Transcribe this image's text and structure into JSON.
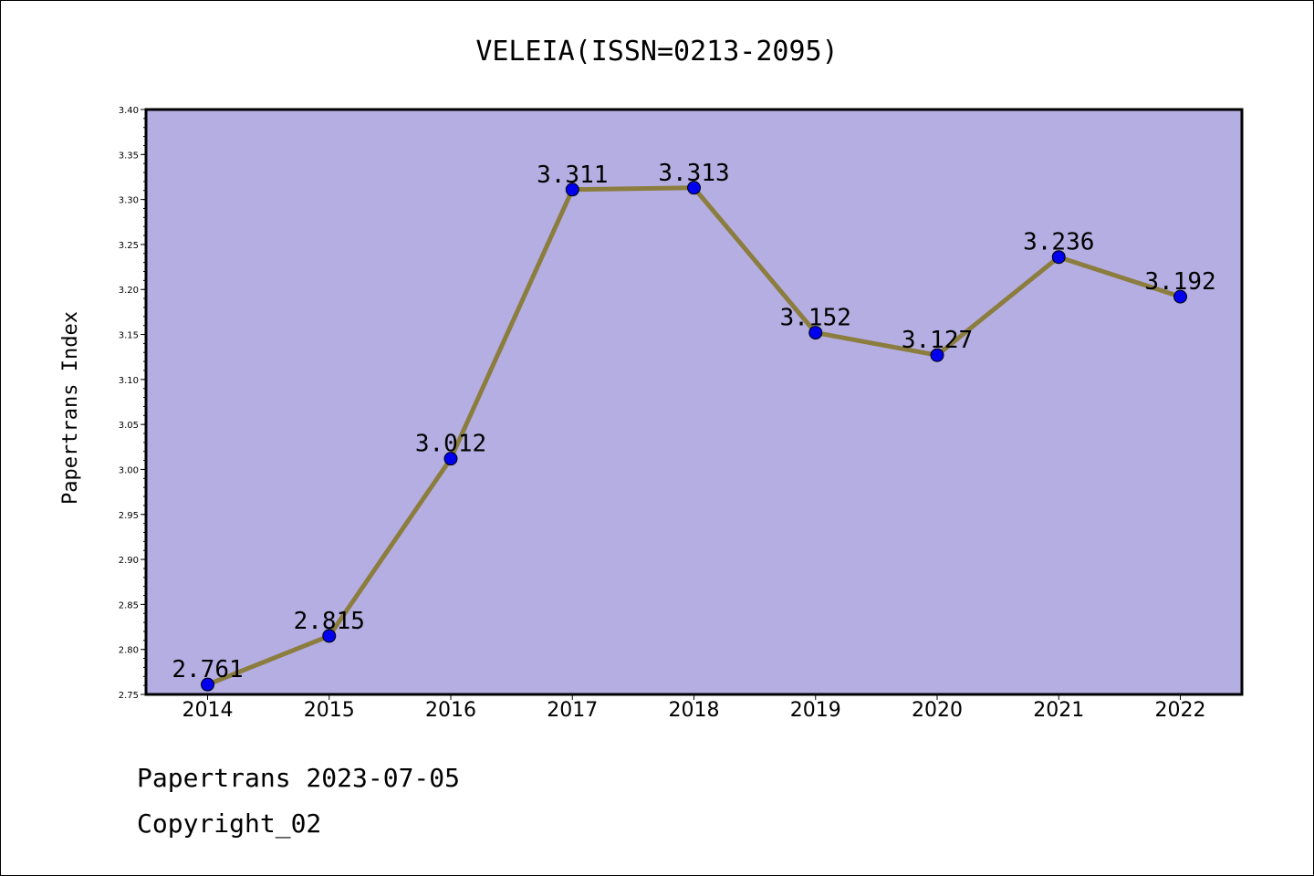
{
  "chart_data": {
    "type": "line",
    "title": "VELEIA(ISSN=0213-2095)",
    "xlabel": "",
    "ylabel": "Papertrans Index",
    "x": [
      "2014",
      "2015",
      "2016",
      "2017",
      "2018",
      "2019",
      "2020",
      "2021",
      "2022"
    ],
    "series": [
      {
        "values": [
          2.761,
          2.815,
          3.012,
          3.311,
          3.313,
          3.152,
          3.127,
          3.236,
          3.192
        ]
      }
    ],
    "data_labels": [
      "2.761",
      "2.815",
      "3.012",
      "3.311",
      "3.313",
      "3.152",
      "3.127",
      "3.236",
      "3.192"
    ],
    "ylim": [
      2.75,
      3.4
    ],
    "yticks": [
      "2.75",
      "2.80",
      "2.85",
      "2.90",
      "2.95",
      "3.00",
      "3.05",
      "3.10",
      "3.15",
      "3.20",
      "3.25",
      "3.30",
      "3.35",
      "3.40"
    ],
    "grid": false,
    "colors": {
      "plot_background": "#b5aee2",
      "line": "#8b7d3e",
      "marker": "#0000ee"
    }
  },
  "footer": {
    "date_line": "Papertrans 2023-07-05",
    "copyright": "Copyright_02"
  }
}
